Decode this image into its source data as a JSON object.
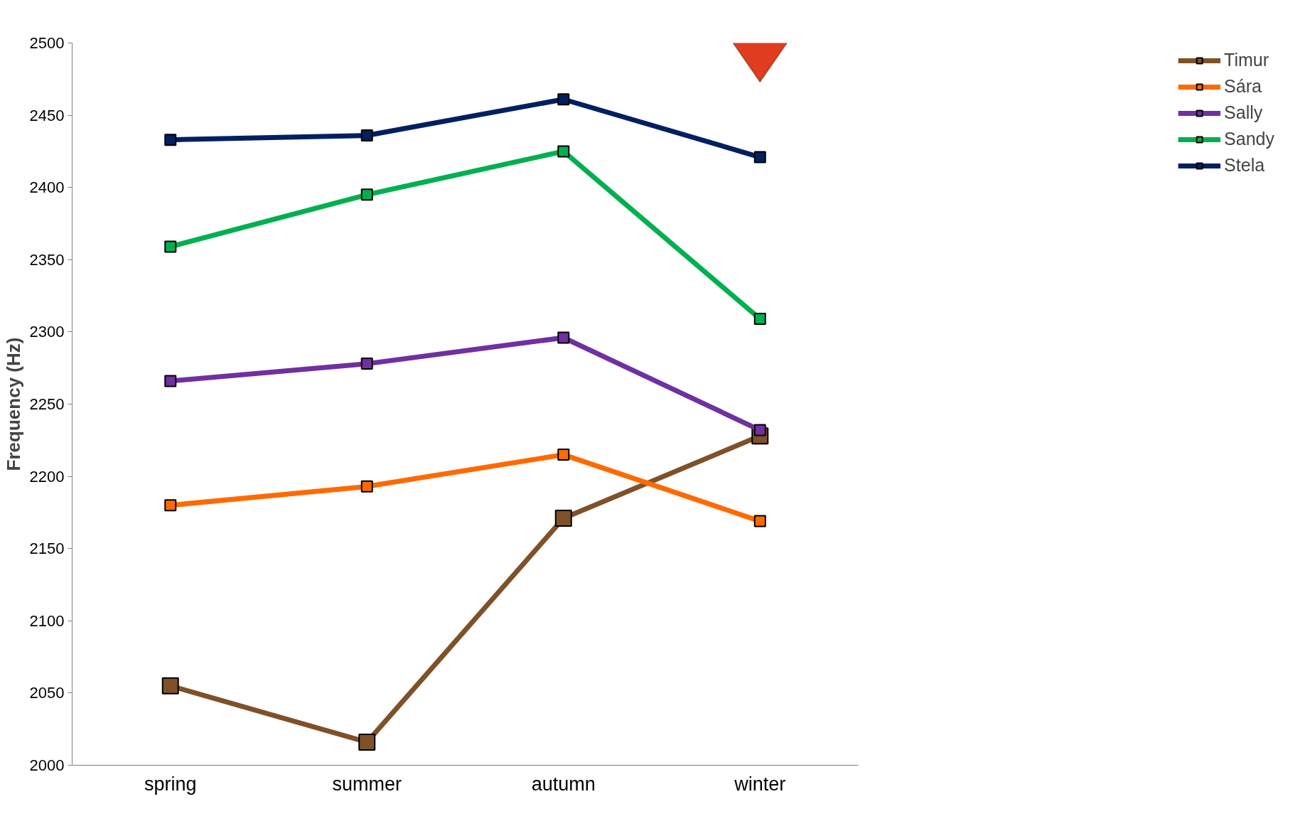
{
  "chart_data": {
    "type": "line",
    "ylabel": "Frequency (Hz)",
    "categories": [
      "spring",
      "summer",
      "autumn",
      "winter"
    ],
    "series": [
      {
        "name": "Timur",
        "color": "#7f5128",
        "values": [
          2055,
          2016,
          2171,
          2228
        ]
      },
      {
        "name": "Sára",
        "color": "#ff6a00",
        "values": [
          2180,
          2193,
          2215,
          2169
        ]
      },
      {
        "name": "Sally",
        "color": "#7030a0",
        "values": [
          2266,
          2278,
          2296,
          2232
        ]
      },
      {
        "name": "Sandy",
        "color": "#00b050",
        "values": [
          2359,
          2395,
          2425,
          2309
        ]
      },
      {
        "name": "Stela",
        "color": "#002060",
        "values": [
          2433,
          2436,
          2461,
          2421
        ]
      }
    ],
    "ylim": [
      2000,
      2500
    ],
    "yticks": [
      2000,
      2050,
      2100,
      2150,
      2200,
      2250,
      2300,
      2350,
      2400,
      2450,
      2500
    ],
    "grid": false,
    "legend": "right",
    "marker": "square",
    "line_style": "solid"
  }
}
